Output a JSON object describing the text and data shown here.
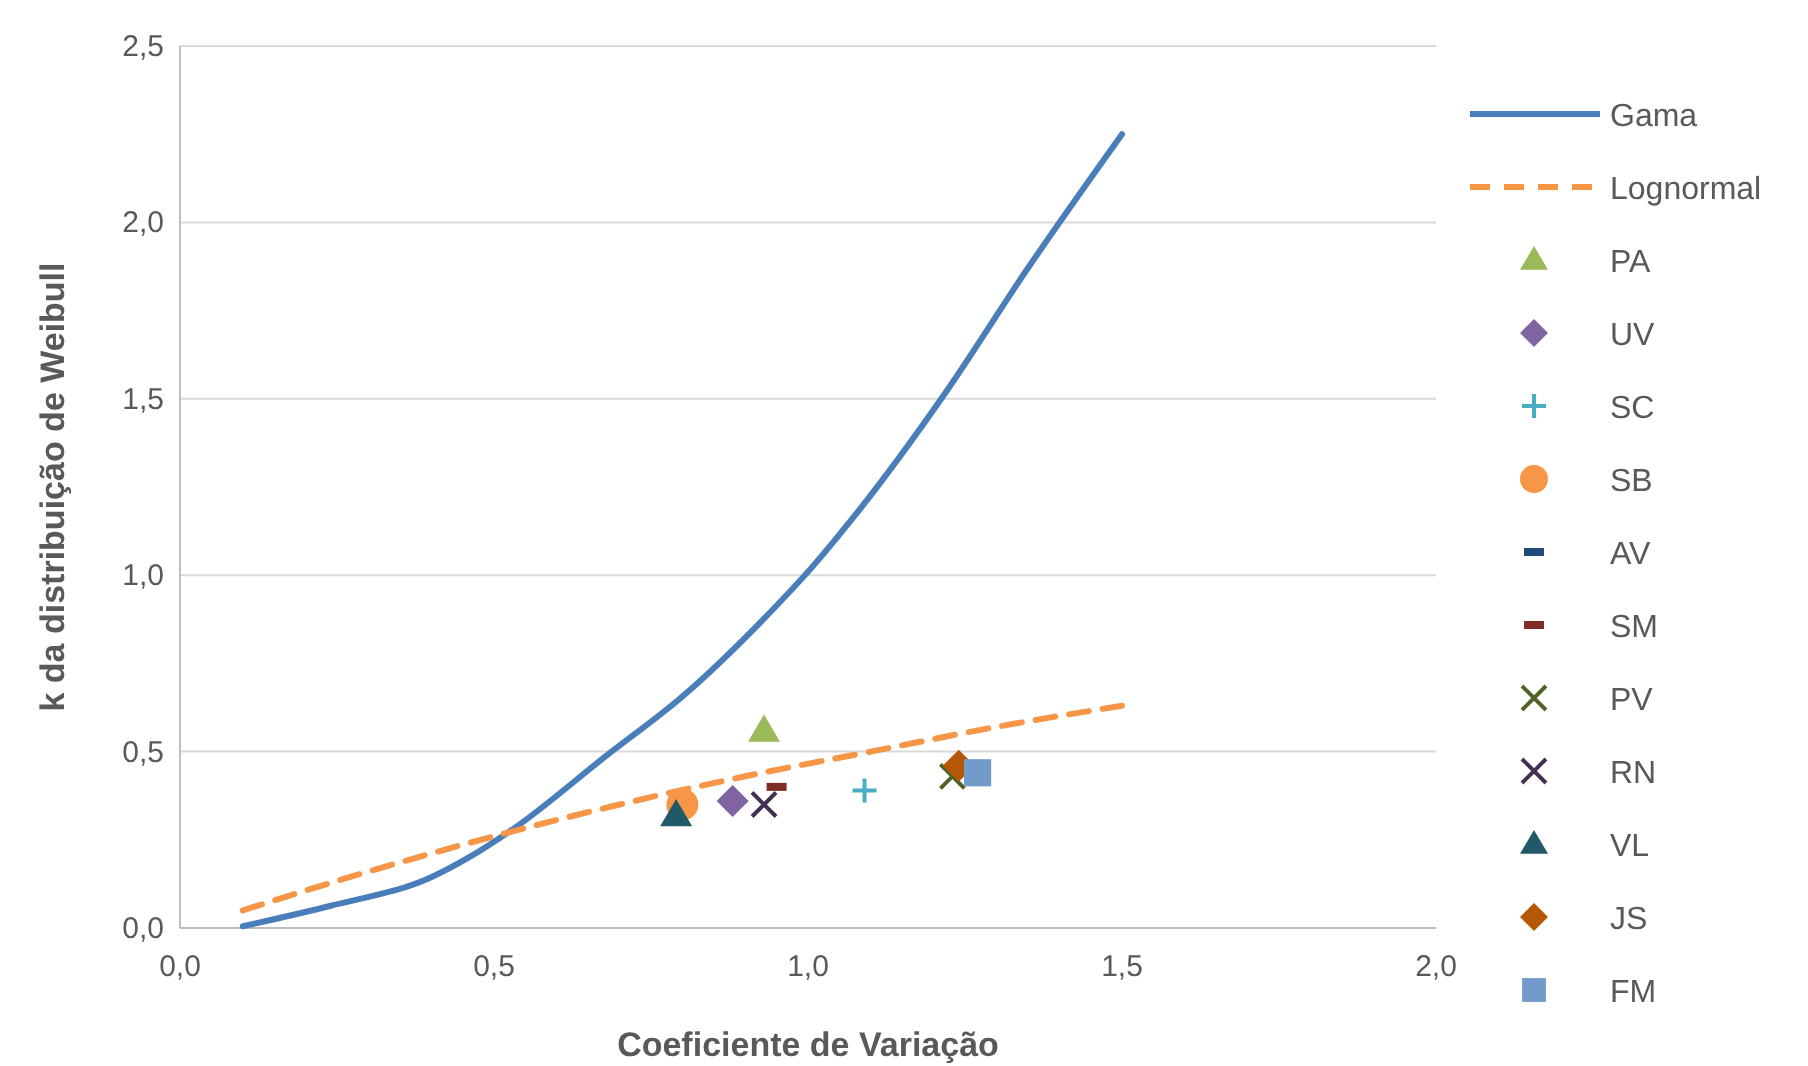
{
  "chart_data": {
    "type": "scatter",
    "xlabel": "Coeficiente de Variação",
    "ylabel": "k da distribuição de Weibull",
    "xlim": [
      0,
      2
    ],
    "xticks": [
      {
        "value": 0,
        "label": "0,0"
      },
      {
        "value": 0.5,
        "label": "0,5"
      },
      {
        "value": 1,
        "label": "1,0"
      },
      {
        "value": 1.5,
        "label": "1,5"
      },
      {
        "value": 2,
        "label": "2,0"
      }
    ],
    "ylim": [
      0,
      2.5
    ],
    "yticks": [
      {
        "value": 0,
        "label": "0,0"
      },
      {
        "value": 0.5,
        "label": "0,5"
      },
      {
        "value": 1,
        "label": "1,0"
      },
      {
        "value": 1.5,
        "label": "1,5"
      },
      {
        "value": 2,
        "label": "2,0"
      },
      {
        "value": 2.5,
        "label": "2,5"
      }
    ],
    "grid": "y",
    "legend": "right",
    "series": [
      {
        "name": "Gama",
        "type": "line",
        "color": "#4a7ebb",
        "line_style": "solid",
        "marker": "none",
        "x": [
          0.1,
          0.24,
          0.4,
          0.46,
          0.53,
          0.68,
          0.8,
          0.93,
          1.01,
          1.075,
          1.22,
          1.35,
          1.5
        ],
        "values": [
          0.005,
          0.063,
          0.144,
          0.2,
          0.28,
          0.49,
          0.656,
          0.877,
          1.03,
          1.17,
          1.52,
          1.87,
          2.25
        ]
      },
      {
        "name": "Lognormal",
        "type": "line",
        "color": "#f79646",
        "line_style": "dashed",
        "marker": "none",
        "x": [
          0.1,
          0.3,
          0.5,
          0.7,
          0.9,
          1.1,
          1.3,
          1.5
        ],
        "values": [
          0.05,
          0.16,
          0.26,
          0.35,
          0.43,
          0.5,
          0.57,
          0.63
        ]
      },
      {
        "name": "PA",
        "color": "#9bbb59",
        "marker": "triangle",
        "x": [
          0.93
        ],
        "values": [
          0.56
        ]
      },
      {
        "name": "UV",
        "color": "#8064a2",
        "marker": "diamond",
        "x": [
          0.88
        ],
        "values": [
          0.36
        ]
      },
      {
        "name": "SC",
        "color": "#4bacc6",
        "marker": "cross",
        "x": [
          1.09
        ],
        "values": [
          0.39
        ]
      },
      {
        "name": "SB",
        "color": "#f79646",
        "marker": "circle",
        "x": [
          0.8
        ],
        "values": [
          0.35
        ]
      },
      {
        "name": "AV",
        "color": "#1f497d"
      },
      {
        "name": "SM",
        "color": "#7f2b27",
        "x": [
          0.95
        ],
        "values": [
          0.4
        ]
      },
      {
        "name": "PV",
        "color": "#4f6228",
        "marker": "x",
        "x": [
          1.23
        ],
        "values": [
          0.43
        ]
      },
      {
        "name": "RN",
        "color": "#403152",
        "marker": "x",
        "x": [
          0.93
        ],
        "values": [
          0.35
        ]
      },
      {
        "name": "VL",
        "color": "#215968",
        "marker": "triangle",
        "x": [
          0.79
        ],
        "values": [
          0.32
        ]
      },
      {
        "name": "JS",
        "color": "#b65708",
        "marker": "diamond",
        "x": [
          1.24
        ],
        "values": [
          0.46
        ]
      },
      {
        "name": "FM",
        "color": "#729aca",
        "marker": "square",
        "x": [
          1.27
        ],
        "values": [
          0.44
        ]
      }
    ]
  }
}
